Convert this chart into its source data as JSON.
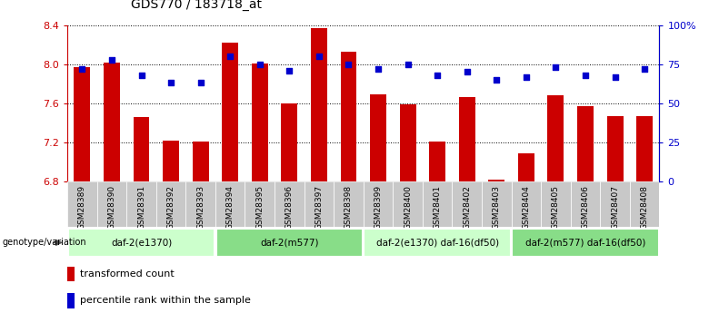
{
  "title": "GDS770 / 183718_at",
  "samples": [
    "GSM28389",
    "GSM28390",
    "GSM28391",
    "GSM28392",
    "GSM28393",
    "GSM28394",
    "GSM28395",
    "GSM28396",
    "GSM28397",
    "GSM28398",
    "GSM28399",
    "GSM28400",
    "GSM28401",
    "GSM28402",
    "GSM28403",
    "GSM28404",
    "GSM28405",
    "GSM28406",
    "GSM28407",
    "GSM28408"
  ],
  "bar_values": [
    7.97,
    8.02,
    7.46,
    7.22,
    7.21,
    8.22,
    8.01,
    7.6,
    8.37,
    8.13,
    7.69,
    7.59,
    7.21,
    7.66,
    6.82,
    7.09,
    7.68,
    7.57,
    7.47,
    7.47
  ],
  "dot_values": [
    72,
    78,
    68,
    63,
    63,
    80,
    75,
    71,
    80,
    75,
    72,
    75,
    68,
    70,
    65,
    67,
    73,
    68,
    67,
    72
  ],
  "ymin": 6.8,
  "ymax": 8.4,
  "y2min": 0,
  "y2max": 100,
  "yticks": [
    6.8,
    7.2,
    7.6,
    8.0,
    8.4
  ],
  "y2ticks": [
    0,
    25,
    50,
    75,
    100
  ],
  "y2ticklabels": [
    "0",
    "25",
    "50",
    "75",
    "100%"
  ],
  "bar_color": "#cc0000",
  "dot_color": "#0000cc",
  "groups": [
    {
      "label": "daf-2(e1370)",
      "start": 0,
      "end": 5,
      "color": "#ccffcc"
    },
    {
      "label": "daf-2(m577)",
      "start": 5,
      "end": 10,
      "color": "#88dd88"
    },
    {
      "label": "daf-2(e1370) daf-16(df50)",
      "start": 10,
      "end": 15,
      "color": "#ccffcc"
    },
    {
      "label": "daf-2(m577) daf-16(df50)",
      "start": 15,
      "end": 20,
      "color": "#88dd88"
    }
  ],
  "genotype_label": "genotype/variation",
  "legend_bar_label": "transformed count",
  "legend_dot_label": "percentile rank within the sample",
  "tick_label_color": "#cc0000",
  "right_tick_color": "#0000cc",
  "bar_bottom": 6.8,
  "sample_label_bg": "#cccccc",
  "sample_label_bg_alt": "#bbbbbb"
}
